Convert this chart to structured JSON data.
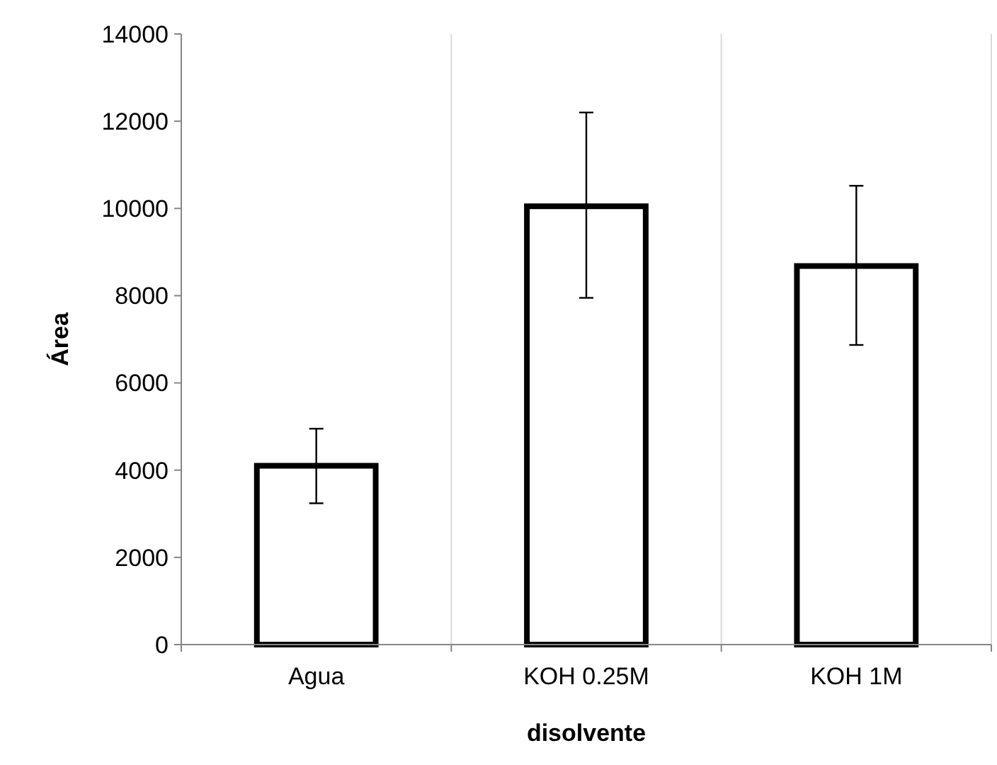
{
  "chart_data": {
    "type": "bar",
    "xlabel": "disolvente",
    "ylabel": "Área",
    "categories": [
      "Agua",
      "KOH 0.25M",
      "KOH 1M"
    ],
    "values": [
      4100,
      10050,
      8680
    ],
    "errors": [
      [
        3240,
        4950
      ],
      [
        7950,
        12200
      ],
      [
        6870,
        10520
      ]
    ],
    "color": "#ffffff",
    "ylim": [
      0,
      14000
    ],
    "yticks": [
      0,
      2000,
      4000,
      6000,
      8000,
      10000,
      12000,
      14000
    ],
    "grid": "x"
  }
}
